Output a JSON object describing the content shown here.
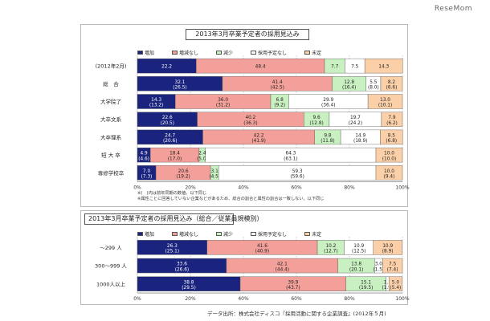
{
  "brand": "ReseMom",
  "legend": [
    "増加",
    "増減なし",
    "減少",
    "採用予定なし",
    "未定"
  ],
  "colors": [
    "#1a237e",
    "#f4a09a",
    "#c8f0c0",
    "#ffffff",
    "#fbd0a8"
  ],
  "notes": [
    "※(　)内は前年同期の数値。以下同じ",
    "※属性ことに回答していない企業などがあるため、総合の割合と属性の割合は一致しない。以下同じ"
  ],
  "source": "データ出所：株式会社ディスコ『採用活動に関する企業調査』(2012年５月)",
  "chart_data": [
    {
      "type": "bar",
      "stacked": true,
      "orientation": "horizontal",
      "title": "2013年3月卒業予定者の採用見込み",
      "series_names": [
        "増加",
        "増減なし",
        "減少",
        "採用予定なし",
        "未定"
      ],
      "xlim": [
        0,
        100
      ],
      "xticks": [
        "0%",
        "20%",
        "40%",
        "60%",
        "80%",
        "100%"
      ],
      "categories": [
        "(2012年2月)",
        "総　合",
        "大学院了",
        "大卒文系",
        "大卒理系",
        "短 大 卒",
        "専修学校卒"
      ],
      "values": [
        [
          22.2,
          48.4,
          7.7,
          7.5,
          14.3
        ],
        [
          32.1,
          41.4,
          12.8,
          5.5,
          8.2
        ],
        [
          14.3,
          36.0,
          6.8,
          29.9,
          13.0
        ],
        [
          22.6,
          40.2,
          9.6,
          19.7,
          7.9
        ],
        [
          24.7,
          42.2,
          9.8,
          14.9,
          8.5
        ],
        [
          4.9,
          18.4,
          2.4,
          64.3,
          10.0
        ],
        [
          7.0,
          20.6,
          3.1,
          59.3,
          10.0
        ]
      ],
      "labels": [
        [
          [
            "22.2",
            ""
          ],
          [
            "48.4",
            ""
          ],
          [
            "7.7",
            ""
          ],
          [
            "7.5",
            ""
          ],
          [
            "14.3",
            ""
          ]
        ],
        [
          [
            "32.1",
            "(26.5)"
          ],
          [
            "41.4",
            "(42.5)"
          ],
          [
            "12.8",
            "(16.4)"
          ],
          [
            "5.5",
            "(8.0)"
          ],
          [
            "8.2",
            "(6.6)"
          ]
        ],
        [
          [
            "14.3",
            "(13.2)"
          ],
          [
            "36.0",
            "(31.2)"
          ],
          [
            "6.8",
            "(9.2)"
          ],
          [
            "29.9",
            "(36.4)"
          ],
          [
            "13.0",
            "(10.1)"
          ]
        ],
        [
          [
            "22.6",
            "(20.5)"
          ],
          [
            "40.2",
            "(36.3)"
          ],
          [
            "9.6",
            "(12.8)"
          ],
          [
            "19.7",
            "(24.2)"
          ],
          [
            "7.9",
            "(6.2)"
          ]
        ],
        [
          [
            "24.7",
            "(20.6)"
          ],
          [
            "42.2",
            "(41.9)"
          ],
          [
            "9.8",
            "(11.8)"
          ],
          [
            "14.9",
            "(18.9)"
          ],
          [
            "8.5",
            "(6.8)"
          ]
        ],
        [
          [
            "4.9",
            "(4.6)"
          ],
          [
            "18.4",
            "(17.0)"
          ],
          [
            "2.4",
            "(5.0)"
          ],
          [
            "64.3",
            "(63.1)"
          ],
          [
            "10.0",
            "(10.0)"
          ]
        ],
        [
          [
            "7.0",
            "(7.3)"
          ],
          [
            "20.6",
            "(19.2)"
          ],
          [
            "3.1",
            "(4.5)"
          ],
          [
            "59.3",
            "(59.6)"
          ],
          [
            "10.0",
            "(9.4)"
          ]
        ]
      ]
    },
    {
      "type": "bar",
      "stacked": true,
      "orientation": "horizontal",
      "title": "2013年3月卒業予定者の採用見込み（総合／従業員規模別）",
      "series_names": [
        "増加",
        "増減なし",
        "減少",
        "採用予定なし",
        "未定"
      ],
      "xlim": [
        0,
        100
      ],
      "xticks": [
        "0%",
        "20%",
        "40%",
        "60%",
        "80%",
        "100%"
      ],
      "categories": [
        "～299 人",
        "300～999 人",
        "1000人以上"
      ],
      "values": [
        [
          26.3,
          41.6,
          10.2,
          10.9,
          10.9
        ],
        [
          33.6,
          42.1,
          13.8,
          3.0,
          7.5
        ],
        [
          38.8,
          39.9,
          15.1,
          1.1,
          5.0
        ]
      ],
      "labels": [
        [
          [
            "26.3",
            "(25.1)"
          ],
          [
            "41.6",
            "(40.9)"
          ],
          [
            "10.2",
            "(12.7)"
          ],
          [
            "10.9",
            "(12.5)"
          ],
          [
            "10.9",
            "(8.9)"
          ]
        ],
        [
          [
            "33.6",
            "(26.6)"
          ],
          [
            "42.1",
            "(44.4)"
          ],
          [
            "13.8",
            "(20.1)"
          ],
          [
            "3.0",
            "(1.5)"
          ],
          [
            "7.5",
            "(7.4)"
          ]
        ],
        [
          [
            "38.8",
            "(29.5)"
          ],
          [
            "39.9",
            "(43.7)"
          ],
          [
            "15.1",
            "(19.5)"
          ],
          [
            "1.1",
            "(1.9)"
          ],
          [
            "5.0",
            "(5.4)"
          ]
        ]
      ]
    }
  ]
}
